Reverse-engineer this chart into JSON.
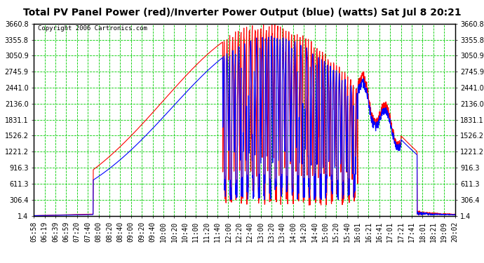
{
  "title": "Total PV Panel Power (red)/Inverter Power Output (blue) (watts) Sat Jul 8 20:21",
  "copyright": "Copyright 2006 Cartronics.com",
  "fig_bg_color": "#ffffff",
  "plot_bg_color": "#ffffff",
  "grid_color": "#00cc00",
  "border_color": "#000000",
  "yticks": [
    1.4,
    306.4,
    611.3,
    916.3,
    1221.2,
    1526.2,
    1831.1,
    2136.0,
    2441.0,
    2745.9,
    3050.9,
    3355.8,
    3660.8
  ],
  "xtick_labels": [
    "05:58",
    "06:19",
    "06:39",
    "06:59",
    "07:20",
    "07:40",
    "08:00",
    "08:20",
    "08:40",
    "09:00",
    "09:20",
    "09:40",
    "10:00",
    "10:20",
    "10:40",
    "11:00",
    "11:20",
    "11:40",
    "12:00",
    "12:20",
    "12:40",
    "13:00",
    "13:20",
    "13:40",
    "14:00",
    "14:20",
    "14:40",
    "15:00",
    "15:20",
    "15:40",
    "16:01",
    "16:21",
    "16:41",
    "17:01",
    "17:21",
    "17:41",
    "18:01",
    "18:21",
    "19:09",
    "20:02"
  ],
  "ylim": [
    1.4,
    3660.8
  ],
  "xlim": [
    0,
    39
  ],
  "pv_color": "red",
  "inv_color": "blue",
  "title_fontsize": 10,
  "tick_fontsize": 7
}
